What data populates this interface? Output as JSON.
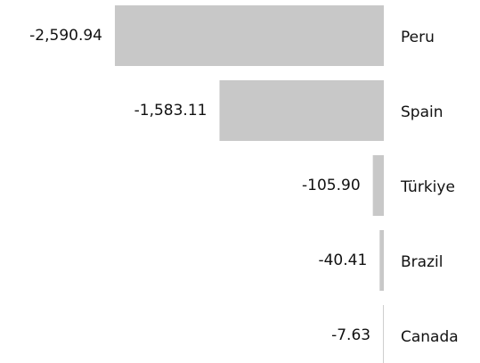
{
  "chart_data": {
    "type": "hbar",
    "categories": [
      "Peru",
      "Spain",
      "Türkiye",
      "Brazil",
      "Canada"
    ],
    "values": [
      -2590.94,
      -1583.11,
      -105.9,
      -40.41,
      -7.63
    ],
    "value_labels": [
      "-2,590.94",
      "-1,583.11",
      "-105.90",
      "-40.41",
      "-7.63"
    ],
    "color": "#c8c8c8"
  }
}
